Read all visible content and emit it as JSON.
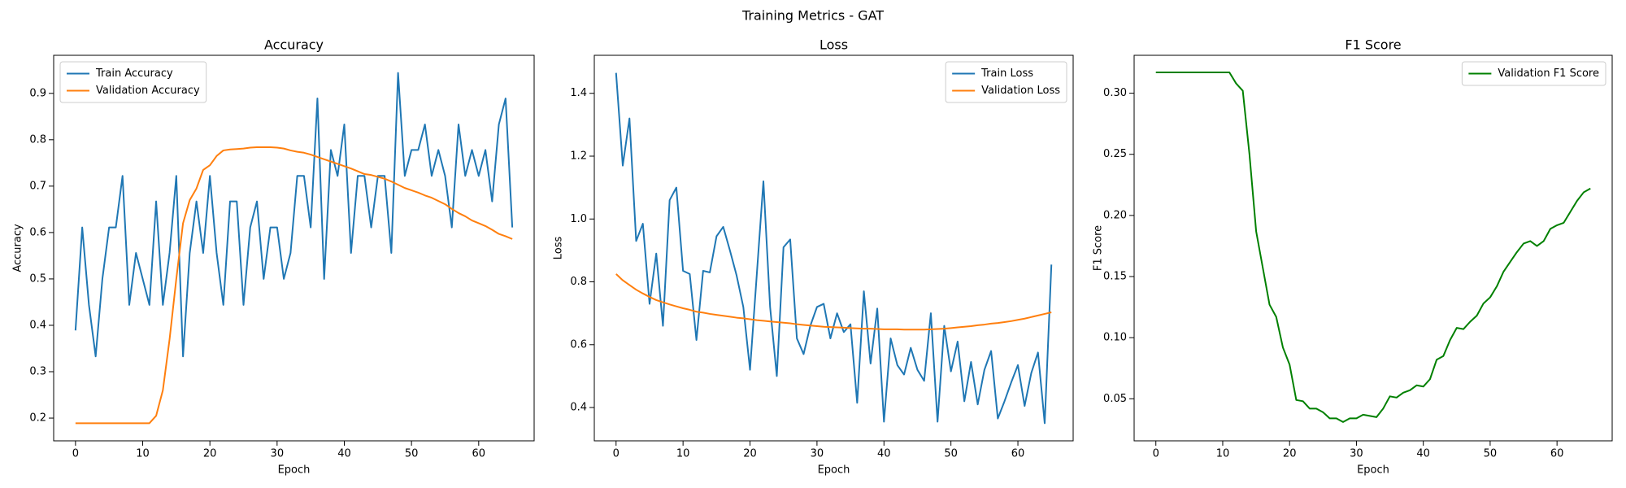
{
  "title": "Training Metrics - GAT",
  "chart_data": [
    {
      "type": "line",
      "title": "Accuracy",
      "xlabel": "Epoch",
      "ylabel": "Accuracy",
      "x": [
        0,
        1,
        2,
        3,
        4,
        5,
        6,
        7,
        8,
        9,
        10,
        11,
        12,
        13,
        14,
        15,
        16,
        17,
        18,
        19,
        20,
        21,
        22,
        23,
        24,
        25,
        26,
        27,
        28,
        29,
        30,
        31,
        32,
        33,
        34,
        35,
        36,
        37,
        38,
        39,
        40,
        41,
        42,
        43,
        44,
        45,
        46,
        47,
        48,
        49,
        50,
        51,
        52,
        53,
        54,
        55,
        56,
        57,
        58,
        59,
        60,
        61,
        62,
        63,
        64,
        65
      ],
      "series": [
        {
          "name": "Train Accuracy",
          "color": "#1f77b4",
          "values": [
            0.389,
            0.611,
            0.444,
            0.333,
            0.5,
            0.611,
            0.611,
            0.722,
            0.444,
            0.556,
            0.5,
            0.444,
            0.667,
            0.444,
            0.556,
            0.722,
            0.333,
            0.556,
            0.667,
            0.556,
            0.722,
            0.556,
            0.444,
            0.667,
            0.667,
            0.444,
            0.611,
            0.667,
            0.5,
            0.611,
            0.611,
            0.5,
            0.556,
            0.722,
            0.722,
            0.611,
            0.889,
            0.5,
            0.778,
            0.722,
            0.833,
            0.556,
            0.722,
            0.722,
            0.611,
            0.722,
            0.722,
            0.556,
            0.944,
            0.722,
            0.778,
            0.778,
            0.833,
            0.722,
            0.778,
            0.722,
            0.611,
            0.833,
            0.722,
            0.778,
            0.722,
            0.778,
            0.667,
            0.833,
            0.889,
            0.611
          ]
        },
        {
          "name": "Validation Accuracy",
          "color": "#ff7f0e",
          "values": [
            0.189,
            0.189,
            0.189,
            0.189,
            0.189,
            0.189,
            0.189,
            0.189,
            0.189,
            0.189,
            0.189,
            0.189,
            0.205,
            0.26,
            0.37,
            0.5,
            0.62,
            0.67,
            0.695,
            0.735,
            0.745,
            0.765,
            0.777,
            0.779,
            0.78,
            0.781,
            0.783,
            0.784,
            0.784,
            0.784,
            0.783,
            0.781,
            0.777,
            0.774,
            0.772,
            0.768,
            0.763,
            0.758,
            0.753,
            0.748,
            0.743,
            0.738,
            0.732,
            0.726,
            0.724,
            0.72,
            0.716,
            0.71,
            0.703,
            0.696,
            0.691,
            0.686,
            0.68,
            0.675,
            0.668,
            0.661,
            0.651,
            0.642,
            0.635,
            0.626,
            0.62,
            0.614,
            0.606,
            0.597,
            0.592,
            0.586
          ]
        }
      ],
      "xlim": [
        -3.25,
        68.25
      ],
      "ylim": [
        0.151,
        0.982
      ],
      "xticks": [
        0,
        10,
        20,
        30,
        40,
        50,
        60
      ],
      "yticks": [
        0.2,
        0.3,
        0.4,
        0.5,
        0.6,
        0.7,
        0.8,
        0.9
      ],
      "grid": false,
      "legend": "upper left"
    },
    {
      "type": "line",
      "title": "Loss",
      "xlabel": "Epoch",
      "ylabel": "Loss",
      "x": [
        0,
        1,
        2,
        3,
        4,
        5,
        6,
        7,
        8,
        9,
        10,
        11,
        12,
        13,
        14,
        15,
        16,
        17,
        18,
        19,
        20,
        21,
        22,
        23,
        24,
        25,
        26,
        27,
        28,
        29,
        30,
        31,
        32,
        33,
        34,
        35,
        36,
        37,
        38,
        39,
        40,
        41,
        42,
        43,
        44,
        45,
        46,
        47,
        48,
        49,
        50,
        51,
        52,
        53,
        54,
        55,
        56,
        57,
        58,
        59,
        60,
        61,
        62,
        63,
        64,
        65
      ],
      "series": [
        {
          "name": "Train Loss",
          "color": "#1f77b4",
          "values": [
            1.465,
            1.17,
            1.32,
            0.93,
            0.985,
            0.73,
            0.89,
            0.66,
            1.06,
            1.1,
            0.835,
            0.825,
            0.615,
            0.835,
            0.83,
            0.945,
            0.975,
            0.9,
            0.82,
            0.72,
            0.52,
            0.82,
            1.12,
            0.72,
            0.5,
            0.91,
            0.935,
            0.62,
            0.57,
            0.66,
            0.72,
            0.73,
            0.62,
            0.7,
            0.64,
            0.665,
            0.415,
            0.77,
            0.54,
            0.715,
            0.355,
            0.62,
            0.535,
            0.505,
            0.59,
            0.52,
            0.485,
            0.7,
            0.355,
            0.66,
            0.515,
            0.61,
            0.42,
            0.545,
            0.41,
            0.52,
            0.58,
            0.365,
            0.42,
            0.48,
            0.535,
            0.405,
            0.51,
            0.575,
            0.35,
            0.855
          ]
        },
        {
          "name": "Validation Loss",
          "color": "#ff7f0e",
          "values": [
            0.825,
            0.805,
            0.79,
            0.775,
            0.763,
            0.752,
            0.742,
            0.735,
            0.728,
            0.722,
            0.716,
            0.711,
            0.705,
            0.702,
            0.698,
            0.695,
            0.692,
            0.689,
            0.686,
            0.684,
            0.681,
            0.678,
            0.676,
            0.674,
            0.672,
            0.67,
            0.668,
            0.665,
            0.663,
            0.661,
            0.659,
            0.657,
            0.656,
            0.655,
            0.654,
            0.653,
            0.652,
            0.651,
            0.651,
            0.65,
            0.649,
            0.649,
            0.649,
            0.648,
            0.648,
            0.648,
            0.648,
            0.649,
            0.65,
            0.651,
            0.653,
            0.655,
            0.657,
            0.659,
            0.662,
            0.664,
            0.667,
            0.669,
            0.672,
            0.675,
            0.679,
            0.683,
            0.688,
            0.693,
            0.698,
            0.703
          ]
        }
      ],
      "xlim": [
        -3.25,
        68.25
      ],
      "ylim": [
        0.294,
        1.521
      ],
      "xticks": [
        0,
        10,
        20,
        30,
        40,
        50,
        60
      ],
      "yticks": [
        0.4,
        0.6,
        0.8,
        {
          "value": 1,
          "label": "1.0"
        },
        1.2,
        1.4
      ],
      "grid": false,
      "legend": "upper right"
    },
    {
      "type": "line",
      "title": "F1 Score",
      "xlabel": "Epoch",
      "ylabel": "F1 Score",
      "x": [
        0,
        1,
        2,
        3,
        4,
        5,
        6,
        7,
        8,
        9,
        10,
        11,
        12,
        13,
        14,
        15,
        16,
        17,
        18,
        19,
        20,
        21,
        22,
        23,
        24,
        25,
        26,
        27,
        28,
        29,
        30,
        31,
        32,
        33,
        34,
        35,
        36,
        37,
        38,
        39,
        40,
        41,
        42,
        43,
        44,
        45,
        46,
        47,
        48,
        49,
        50,
        51,
        52,
        53,
        54,
        55,
        56,
        57,
        58,
        59,
        60,
        61,
        62,
        63,
        64,
        65
      ],
      "series": [
        {
          "name": "Validation F1 Score",
          "color": "#008000",
          "values": [
            0.317,
            0.317,
            0.317,
            0.317,
            0.317,
            0.317,
            0.317,
            0.317,
            0.317,
            0.317,
            0.317,
            0.317,
            0.308,
            0.302,
            0.25,
            0.187,
            0.157,
            0.127,
            0.117,
            0.092,
            0.078,
            0.049,
            0.048,
            0.042,
            0.042,
            0.039,
            0.034,
            0.034,
            0.031,
            0.034,
            0.034,
            0.037,
            0.036,
            0.035,
            0.042,
            0.052,
            0.051,
            0.055,
            0.057,
            0.061,
            0.06,
            0.066,
            0.082,
            0.085,
            0.098,
            0.108,
            0.107,
            0.113,
            0.118,
            0.128,
            0.133,
            0.142,
            0.154,
            0.162,
            0.17,
            0.177,
            0.179,
            0.175,
            0.179,
            0.189,
            0.192,
            0.194,
            0.203,
            0.212,
            0.219,
            0.222
          ]
        }
      ],
      "xlim": [
        -3.25,
        68.25
      ],
      "ylim": [
        0.0156,
        0.331
      ],
      "xticks": [
        0,
        10,
        20,
        30,
        40,
        50,
        60
      ],
      "yticks": [
        0.05,
        {
          "value": 0.1,
          "label": "0.10"
        },
        0.15,
        {
          "value": 0.2,
          "label": "0.20"
        },
        0.25,
        {
          "value": 0.3,
          "label": "0.30"
        }
      ],
      "grid": false,
      "legend": "upper right"
    }
  ]
}
